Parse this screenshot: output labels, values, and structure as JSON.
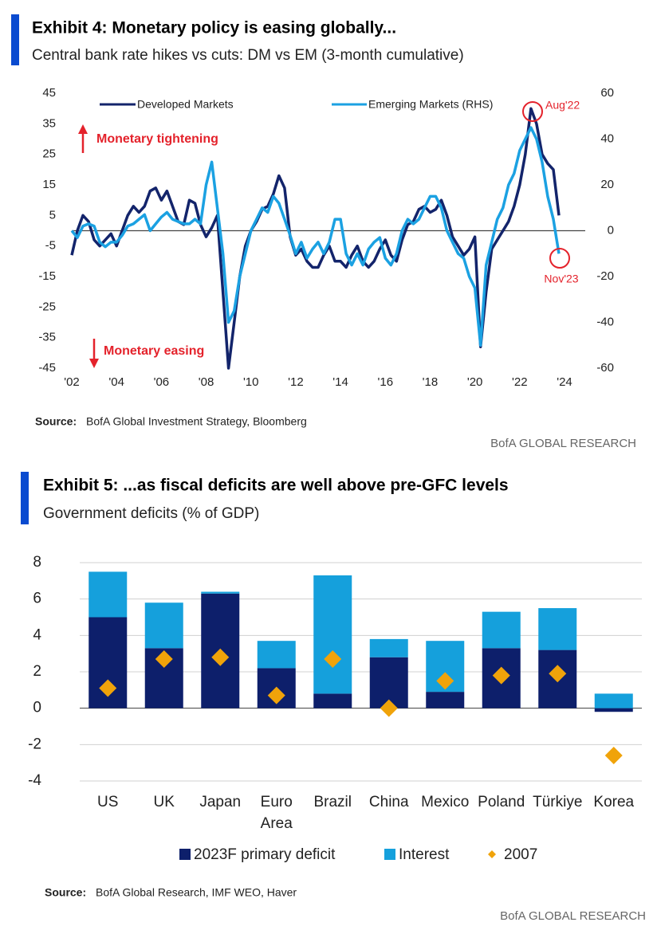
{
  "chart_data": [
    {
      "type": "line",
      "title": "Exhibit 4: Monetary policy is easing globally...",
      "subtitle": "Central bank rate hikes vs cuts: DM vs EM (3-month cumulative)",
      "source_label": "Source:",
      "source": "BofA Global Investment Strategy, Bloomberg",
      "footer": "BofA GLOBAL RESEARCH",
      "annotations": [
        "Monetary tightening",
        "Monetary easing",
        "Aug'22",
        "Nov'23"
      ],
      "x": [
        2002,
        2002.25,
        2002.5,
        2002.75,
        2003,
        2003.25,
        2003.5,
        2003.75,
        2004,
        2004.25,
        2004.5,
        2004.75,
        2005,
        2005.25,
        2005.5,
        2005.75,
        2006,
        2006.25,
        2006.5,
        2006.75,
        2007,
        2007.25,
        2007.5,
        2007.75,
        2008,
        2008.25,
        2008.5,
        2008.75,
        2009,
        2009.25,
        2009.5,
        2009.75,
        2010,
        2010.25,
        2010.5,
        2010.75,
        2011,
        2011.25,
        2011.5,
        2011.75,
        2012,
        2012.25,
        2012.5,
        2012.75,
        2013,
        2013.25,
        2013.5,
        2013.75,
        2014,
        2014.25,
        2014.5,
        2014.75,
        2015,
        2015.25,
        2015.5,
        2015.75,
        2016,
        2016.25,
        2016.5,
        2016.75,
        2017,
        2017.25,
        2017.5,
        2017.75,
        2018,
        2018.25,
        2018.5,
        2018.75,
        2019,
        2019.25,
        2019.5,
        2019.75,
        2020,
        2020.25,
        2020.5,
        2020.75,
        2021,
        2021.25,
        2021.5,
        2021.75,
        2022,
        2022.25,
        2022.5,
        2022.75,
        2023,
        2023.25,
        2023.5,
        2023.75
      ],
      "series": [
        {
          "name": "Developed Markets",
          "color": "#13246b",
          "axis": "y",
          "values": [
            -8,
            0,
            5,
            3,
            -3,
            -5,
            -3,
            -1,
            -5,
            0,
            5,
            8,
            6,
            8,
            13,
            14,
            10,
            13,
            8,
            3,
            2,
            10,
            9,
            2,
            -2,
            1,
            5,
            -20,
            -45,
            -30,
            -15,
            -5,
            0,
            3,
            7,
            8,
            12,
            18,
            14,
            -2,
            -8,
            -6,
            -10,
            -12,
            -12,
            -8,
            -5,
            -10,
            -10,
            -12,
            -8,
            -5,
            -10,
            -12,
            -10,
            -6,
            -3,
            -8,
            -10,
            -3,
            2,
            3,
            7,
            8,
            6,
            7,
            10,
            5,
            -2,
            -5,
            -8,
            -6,
            -2,
            -38,
            -20,
            -6,
            -3,
            0,
            3,
            8,
            15,
            25,
            40,
            35,
            25,
            22,
            20,
            5
          ]
        },
        {
          "name": "Emerging Markets (RHS)",
          "color": "#1ba1e2",
          "axis": "y2",
          "values": [
            0,
            -3,
            2,
            3,
            2,
            -5,
            -7,
            -5,
            -5,
            -2,
            2,
            3,
            5,
            7,
            0,
            3,
            6,
            8,
            5,
            4,
            3,
            3,
            5,
            3,
            20,
            30,
            10,
            -10,
            -40,
            -35,
            -20,
            -10,
            0,
            5,
            10,
            8,
            15,
            12,
            5,
            -2,
            -10,
            -5,
            -12,
            -8,
            -5,
            -10,
            -5,
            5,
            5,
            -10,
            -15,
            -10,
            -15,
            -8,
            -5,
            -3,
            -12,
            -15,
            -10,
            0,
            5,
            3,
            5,
            10,
            15,
            15,
            10,
            0,
            -5,
            -10,
            -12,
            -20,
            -25,
            -50,
            -15,
            -5,
            5,
            10,
            20,
            25,
            35,
            40,
            45,
            40,
            30,
            15,
            5,
            -10
          ]
        }
      ],
      "xlim": [
        2002,
        2024
      ],
      "xticks": [
        {
          "value": 2002,
          "label": "'02"
        },
        {
          "value": 2004,
          "label": "'04"
        },
        {
          "value": 2006,
          "label": "'06"
        },
        {
          "value": 2008,
          "label": "'08"
        },
        {
          "value": 2010,
          "label": "'10"
        },
        {
          "value": 2012,
          "label": "'12"
        },
        {
          "value": 2014,
          "label": "'14"
        },
        {
          "value": 2016,
          "label": "'16"
        },
        {
          "value": 2018,
          "label": "'18"
        },
        {
          "value": 2020,
          "label": "'20"
        },
        {
          "value": 2022,
          "label": "'22"
        },
        {
          "value": 2024,
          "label": "'24"
        }
      ],
      "ylim": [
        -45,
        45
      ],
      "yticks": [
        -45,
        -35,
        -25,
        -15,
        -5,
        5,
        15,
        25,
        35,
        45
      ],
      "y2lim": [
        -60,
        60
      ],
      "y2ticks": [
        -60,
        -40,
        -20,
        0,
        20,
        40,
        60
      ]
    },
    {
      "type": "bar",
      "title": "Exhibit 5: ...as fiscal deficits are well above pre-GFC levels",
      "subtitle": "Government deficits (% of GDP)",
      "source_label": "Source:",
      "source": "BofA Global Research, IMF WEO, Haver",
      "footer": "BofA GLOBAL RESEARCH",
      "categories": [
        "US",
        "UK",
        "Japan",
        "Euro Area",
        "Brazil",
        "China",
        "Mexico",
        "Poland",
        "Türkiye",
        "Korea"
      ],
      "series": [
        {
          "name": "2023F primary deficit",
          "color": "#0d1f6b",
          "mark": "bar",
          "values": [
            5,
            3.3,
            6.3,
            2.2,
            0.8,
            2.8,
            0.9,
            3.3,
            3.2,
            -0.2
          ]
        },
        {
          "name": "Interest",
          "color": "#15a0dc",
          "mark": "bar",
          "values": [
            2.5,
            2.5,
            0.1,
            1.5,
            6.5,
            1,
            2.8,
            2,
            2.3,
            0.8
          ]
        },
        {
          "name": "2007",
          "color": "#f0a30a",
          "mark": "diamond",
          "values": [
            1.1,
            2.7,
            2.8,
            0.7,
            2.7,
            0,
            1.5,
            1.8,
            1.9,
            -2.6
          ]
        }
      ],
      "ylim": [
        -4,
        8
      ],
      "yticks": [
        -4,
        -2,
        0,
        2,
        4,
        6,
        8
      ],
      "grid": true
    }
  ]
}
